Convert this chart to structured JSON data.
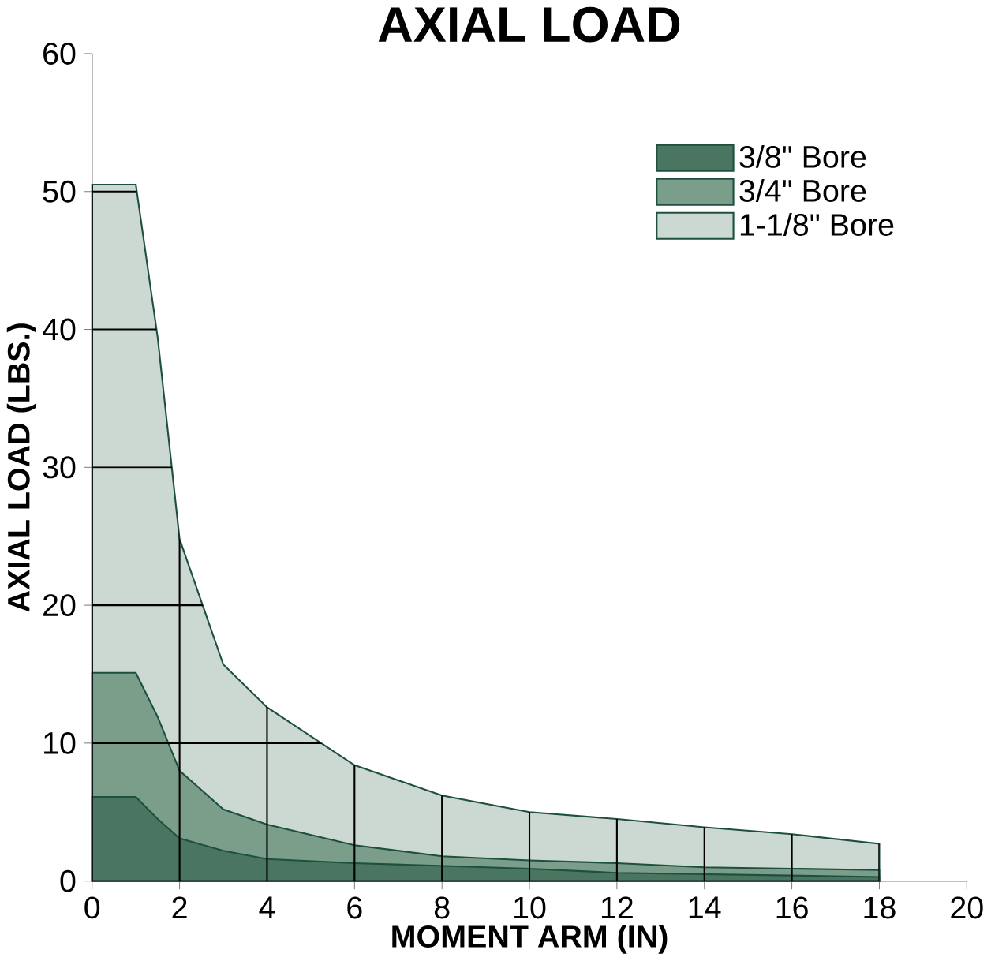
{
  "chart_data": {
    "type": "area",
    "title": "AXIAL LOAD",
    "xlabel": "MOMENT ARM (IN)",
    "ylabel": "AXIAL LOAD (LBS.)",
    "xlim": [
      0,
      20
    ],
    "ylim": [
      0,
      60
    ],
    "xticks": [
      0,
      2,
      4,
      6,
      8,
      10,
      12,
      14,
      16,
      18,
      20
    ],
    "yticks": [
      0,
      10,
      20,
      30,
      40,
      50,
      60
    ],
    "grid": true,
    "legend": "top right",
    "series": [
      {
        "name": "3/8\" Bore",
        "color": "#4a7560",
        "x": [
          0,
          1,
          1.5,
          2,
          3,
          4,
          6,
          8,
          10,
          12,
          18
        ],
        "values": [
          6.1,
          6.1,
          4.5,
          3.1,
          2.2,
          1.6,
          1.3,
          1.1,
          0.9,
          0.6,
          0.3
        ]
      },
      {
        "name": "3/4\" Bore",
        "color": "#7a9e8a",
        "x": [
          0,
          1,
          1.5,
          2,
          3,
          4,
          6,
          8,
          10,
          12,
          14,
          16,
          18
        ],
        "values": [
          15.1,
          15.1,
          11.9,
          8.0,
          5.2,
          4.1,
          2.6,
          1.8,
          1.5,
          1.3,
          1.0,
          0.9,
          0.8
        ]
      },
      {
        "name": "1-1/8\" Bore",
        "color": "#ccd8d2",
        "x": [
          0,
          1,
          1.5,
          2,
          3,
          4,
          6,
          8,
          10,
          12,
          14,
          16,
          18
        ],
        "values": [
          50.5,
          50.5,
          39.4,
          24.8,
          15.7,
          12.6,
          8.4,
          6.2,
          5.0,
          4.5,
          3.9,
          3.4,
          2.7
        ]
      }
    ]
  }
}
